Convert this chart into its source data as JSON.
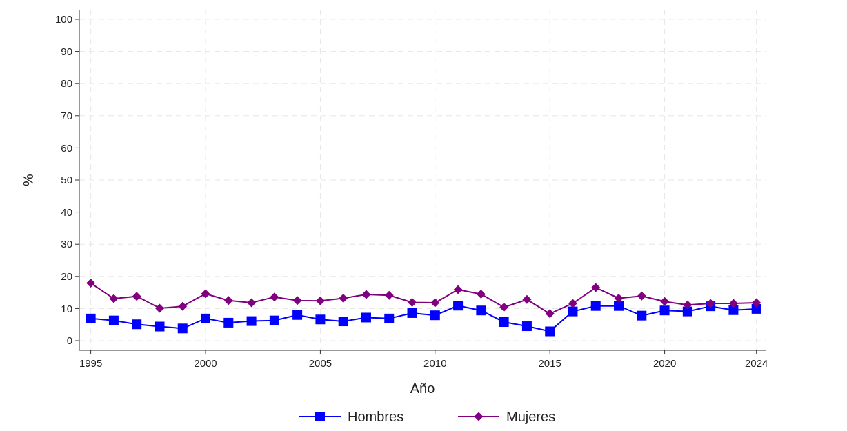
{
  "chart_data": {
    "type": "line",
    "xlabel": "Año",
    "ylabel": "%",
    "x": [
      1995,
      1996,
      1997,
      1998,
      1999,
      2000,
      2001,
      2002,
      2003,
      2004,
      2005,
      2006,
      2007,
      2008,
      2009,
      2010,
      2011,
      2012,
      2013,
      2014,
      2015,
      2016,
      2017,
      2018,
      2019,
      2020,
      2021,
      2022,
      2023,
      2024
    ],
    "series": [
      {
        "name": "Hombres",
        "color": "#0000ff",
        "marker": "square",
        "values": [
          6.9,
          6.3,
          5.1,
          4.4,
          3.8,
          6.9,
          5.6,
          6.1,
          6.3,
          8.0,
          6.6,
          6.0,
          7.2,
          6.9,
          8.6,
          7.9,
          10.9,
          9.4,
          5.8,
          4.5,
          2.9,
          9.1,
          10.8,
          10.8,
          7.8,
          9.4,
          9.1,
          10.7,
          9.5,
          9.9
        ]
      },
      {
        "name": "Mujeres",
        "color": "#800080",
        "marker": "diamond",
        "values": [
          17.9,
          13.1,
          13.8,
          10.1,
          10.7,
          14.6,
          12.5,
          11.8,
          13.6,
          12.5,
          12.4,
          13.2,
          14.4,
          14.1,
          11.9,
          11.8,
          15.9,
          14.5,
          10.4,
          12.8,
          8.4,
          11.6,
          16.5,
          13.2,
          13.9,
          12.2,
          11.1,
          11.6,
          11.6,
          11.8
        ]
      }
    ],
    "xlim": [
      1994.5,
      2024.4
    ],
    "xticks": [
      1995,
      2000,
      2005,
      2010,
      2015,
      2020,
      2024
    ],
    "ylim": [
      -3,
      103
    ],
    "yticks": [
      0,
      10,
      20,
      30,
      40,
      50,
      60,
      70,
      80,
      90,
      100
    ],
    "grid": true,
    "legend": "bottom",
    "line_style": "solid"
  }
}
